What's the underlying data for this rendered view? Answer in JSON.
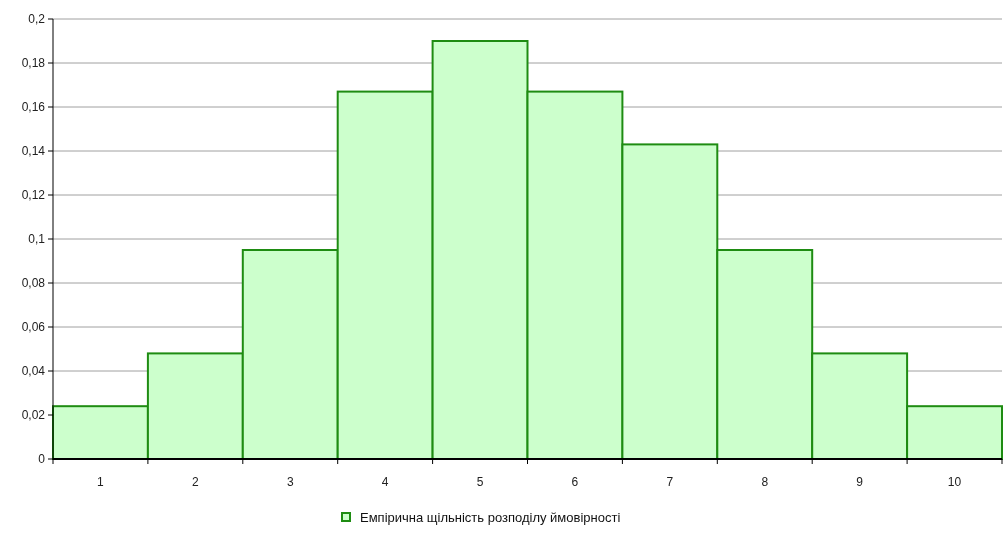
{
  "chart_data": {
    "type": "bar",
    "categories": [
      "1",
      "2",
      "3",
      "4",
      "5",
      "6",
      "7",
      "8",
      "9",
      "10"
    ],
    "series": [
      {
        "name": "Емпірична щільність розподілу ймовірності",
        "color": "#ccffcc",
        "values": [
          0.024,
          0.048,
          0.095,
          0.167,
          0.19,
          0.167,
          0.143,
          0.095,
          0.048,
          0.024
        ]
      }
    ],
    "ylim": [
      0,
      0.2
    ],
    "yticks": [
      0,
      {
        "value": 0.02,
        "label": "0,02"
      },
      {
        "value": 0.04,
        "label": "0,04"
      },
      {
        "value": 0.06,
        "label": "0,06"
      },
      {
        "value": 0.08,
        "label": "0,08"
      },
      {
        "value": 0.1,
        "label": "0,1"
      },
      {
        "value": 0.12,
        "label": "0,12"
      },
      {
        "value": 0.14,
        "label": "0,14"
      },
      {
        "value": 0.16,
        "label": "0,16"
      },
      {
        "value": 0.18,
        "label": "0,18"
      },
      {
        "value": 0.2,
        "label": "0,2"
      }
    ],
    "grid": "y",
    "legend": "bottom"
  }
}
